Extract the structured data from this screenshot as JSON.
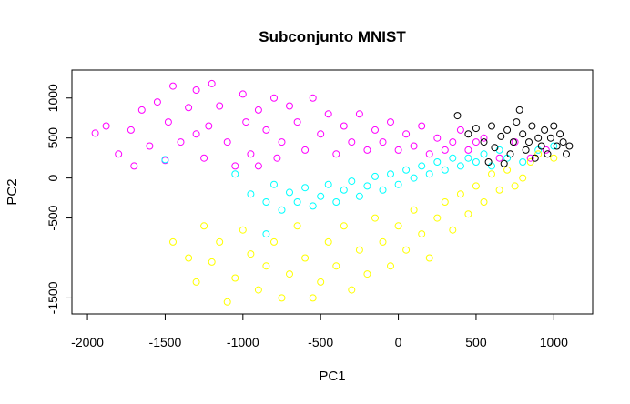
{
  "chart_data": {
    "type": "scatter",
    "title": "Subconjunto MNIST",
    "xlabel": "PC1",
    "ylabel": "PC2",
    "xlim": [
      -2100,
      1250
    ],
    "ylim": [
      -1700,
      1350
    ],
    "xticks": [
      -2000,
      -1500,
      -1000,
      -500,
      0,
      500,
      1000
    ],
    "yticks": [
      1000,
      500,
      0,
      -500,
      -1000,
      -1500
    ],
    "ytick_labels": [
      "1000",
      "500",
      "0",
      "-500",
      "",
      "-1500"
    ],
    "marker": "open-circle",
    "grid": false,
    "legend": "none",
    "series": [
      {
        "color": "#ff00ff",
        "values": [
          [
            -1950,
            560
          ],
          [
            -1880,
            650
          ],
          [
            -1800,
            300
          ],
          [
            -1720,
            600
          ],
          [
            -1650,
            850
          ],
          [
            -1600,
            400
          ],
          [
            -1550,
            950
          ],
          [
            -1500,
            220
          ],
          [
            -1480,
            700
          ],
          [
            -1450,
            1150
          ],
          [
            -1400,
            450
          ],
          [
            -1350,
            880
          ],
          [
            -1300,
            1100
          ],
          [
            -1250,
            250
          ],
          [
            -1220,
            650
          ],
          [
            -1200,
            1180
          ],
          [
            -1150,
            900
          ],
          [
            -1100,
            450
          ],
          [
            -1050,
            150
          ],
          [
            -1000,
            1050
          ],
          [
            -980,
            700
          ],
          [
            -950,
            300
          ],
          [
            -900,
            850
          ],
          [
            -850,
            600
          ],
          [
            -800,
            1000
          ],
          [
            -780,
            250
          ],
          [
            -750,
            450
          ],
          [
            -700,
            900
          ],
          [
            -650,
            700
          ],
          [
            -600,
            350
          ],
          [
            -550,
            1000
          ],
          [
            -500,
            550
          ],
          [
            -450,
            800
          ],
          [
            -400,
            300
          ],
          [
            -350,
            650
          ],
          [
            -300,
            450
          ],
          [
            -250,
            800
          ],
          [
            -200,
            350
          ],
          [
            -150,
            600
          ],
          [
            -100,
            450
          ],
          [
            -50,
            700
          ],
          [
            0,
            350
          ],
          [
            50,
            550
          ],
          [
            100,
            400
          ],
          [
            150,
            650
          ],
          [
            200,
            300
          ],
          [
            250,
            500
          ],
          [
            300,
            350
          ],
          [
            350,
            450
          ],
          [
            400,
            600
          ],
          [
            450,
            350
          ],
          [
            500,
            450
          ],
          [
            550,
            500
          ],
          [
            650,
            250
          ],
          [
            750,
            450
          ],
          [
            850,
            250
          ],
          [
            950,
            350
          ],
          [
            -1700,
            150
          ],
          [
            -1300,
            550
          ],
          [
            -900,
            150
          ]
        ]
      },
      {
        "color": "#00ffff",
        "values": [
          [
            -1500,
            230
          ],
          [
            -1050,
            50
          ],
          [
            -950,
            -200
          ],
          [
            -850,
            -300
          ],
          [
            -800,
            -80
          ],
          [
            -750,
            -400
          ],
          [
            -700,
            -180
          ],
          [
            -650,
            -300
          ],
          [
            -600,
            -120
          ],
          [
            -550,
            -350
          ],
          [
            -500,
            -230
          ],
          [
            -450,
            -80
          ],
          [
            -400,
            -300
          ],
          [
            -350,
            -150
          ],
          [
            -300,
            -40
          ],
          [
            -250,
            -230
          ],
          [
            -200,
            -100
          ],
          [
            -150,
            20
          ],
          [
            -100,
            -150
          ],
          [
            -50,
            50
          ],
          [
            0,
            -80
          ],
          [
            50,
            100
          ],
          [
            100,
            0
          ],
          [
            150,
            150
          ],
          [
            200,
            50
          ],
          [
            250,
            200
          ],
          [
            300,
            100
          ],
          [
            350,
            250
          ],
          [
            400,
            150
          ],
          [
            450,
            250
          ],
          [
            500,
            200
          ],
          [
            550,
            300
          ],
          [
            600,
            150
          ],
          [
            650,
            350
          ],
          [
            700,
            250
          ],
          [
            800,
            200
          ],
          [
            900,
            350
          ],
          [
            1000,
            400
          ],
          [
            -850,
            -700
          ]
        ]
      },
      {
        "color": "#ffff00",
        "values": [
          [
            -1300,
            -1300
          ],
          [
            -1250,
            -600
          ],
          [
            -1200,
            -1050
          ],
          [
            -1150,
            -800
          ],
          [
            -1100,
            -1550
          ],
          [
            -1050,
            -1250
          ],
          [
            -1000,
            -650
          ],
          [
            -950,
            -950
          ],
          [
            -900,
            -1400
          ],
          [
            -850,
            -1100
          ],
          [
            -800,
            -800
          ],
          [
            -750,
            -1500
          ],
          [
            -700,
            -1200
          ],
          [
            -650,
            -600
          ],
          [
            -600,
            -1000
          ],
          [
            -550,
            -1500
          ],
          [
            -500,
            -1300
          ],
          [
            -450,
            -800
          ],
          [
            -400,
            -1100
          ],
          [
            -350,
            -600
          ],
          [
            -300,
            -1400
          ],
          [
            -250,
            -900
          ],
          [
            -200,
            -1200
          ],
          [
            -150,
            -500
          ],
          [
            -100,
            -800
          ],
          [
            -50,
            -1100
          ],
          [
            0,
            -600
          ],
          [
            50,
            -900
          ],
          [
            100,
            -400
          ],
          [
            150,
            -700
          ],
          [
            200,
            -1000
          ],
          [
            250,
            -500
          ],
          [
            300,
            -300
          ],
          [
            350,
            -650
          ],
          [
            400,
            -200
          ],
          [
            450,
            -450
          ],
          [
            500,
            -100
          ],
          [
            550,
            -300
          ],
          [
            600,
            50
          ],
          [
            650,
            -150
          ],
          [
            700,
            100
          ],
          [
            750,
            -100
          ],
          [
            800,
            0
          ],
          [
            850,
            200
          ],
          [
            900,
            300
          ],
          [
            1000,
            250
          ],
          [
            -1450,
            -800
          ],
          [
            -1350,
            -1000
          ]
        ]
      },
      {
        "color": "#000000",
        "values": [
          [
            380,
            780
          ],
          [
            450,
            550
          ],
          [
            500,
            620
          ],
          [
            550,
            450
          ],
          [
            600,
            650
          ],
          [
            620,
            380
          ],
          [
            660,
            520
          ],
          [
            700,
            600
          ],
          [
            720,
            300
          ],
          [
            740,
            450
          ],
          [
            760,
            700
          ],
          [
            780,
            850
          ],
          [
            800,
            550
          ],
          [
            820,
            350
          ],
          [
            840,
            450
          ],
          [
            860,
            650
          ],
          [
            880,
            250
          ],
          [
            900,
            500
          ],
          [
            920,
            400
          ],
          [
            940,
            600
          ],
          [
            960,
            300
          ],
          [
            980,
            500
          ],
          [
            1000,
            650
          ],
          [
            1020,
            400
          ],
          [
            1040,
            550
          ],
          [
            1060,
            450
          ],
          [
            1080,
            300
          ],
          [
            1100,
            400
          ],
          [
            580,
            200
          ],
          [
            680,
            180
          ]
        ]
      }
    ]
  }
}
